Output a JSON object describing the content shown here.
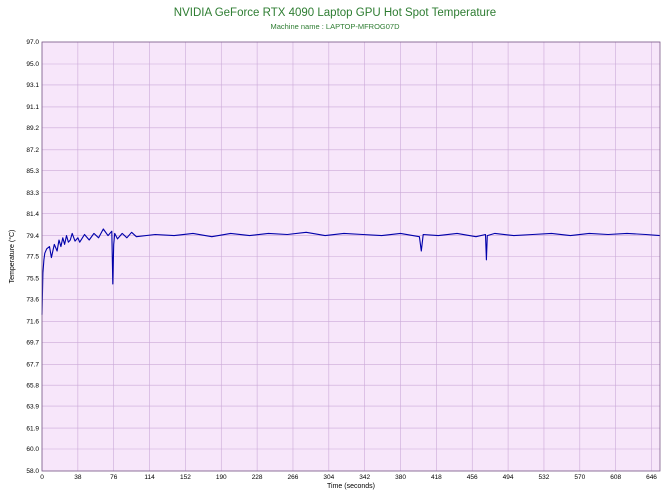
{
  "chart_data": {
    "type": "line",
    "title": "NVIDIA GeForce RTX 4090 Laptop GPU Hot Spot Temperature",
    "subtitle": "Machine name : LAPTOP-MFROG07D",
    "xlabel": "Time (seconds)",
    "ylabel": "Temperature (°C)",
    "xlim": [
      0,
      655
    ],
    "ylim": [
      58.0,
      97.0
    ],
    "x_ticks": [
      "0",
      "38",
      "76",
      "114",
      "152",
      "190",
      "228",
      "266",
      "304",
      "342",
      "380",
      "418",
      "456",
      "494",
      "532",
      "570",
      "608",
      "646"
    ],
    "y_ticks": [
      "97.0",
      "95.0",
      "93.1",
      "91.1",
      "89.2",
      "87.2",
      "85.3",
      "83.3",
      "81.4",
      "79.4",
      "77.5",
      "75.5",
      "73.6",
      "71.6",
      "69.7",
      "67.7",
      "65.8",
      "63.9",
      "61.9",
      "60.0",
      "58.0"
    ],
    "grid": true,
    "background_color": "#f7e6fa",
    "grid_color": "#cba9d8",
    "line_color": "#0000aa",
    "title_color": "#2e7d32",
    "series": [
      {
        "name": "",
        "x": [
          0,
          1,
          2,
          3,
          5,
          8,
          10,
          13,
          16,
          18,
          20,
          22,
          24,
          26,
          28,
          30,
          32,
          35,
          38,
          40,
          45,
          50,
          55,
          60,
          65,
          70,
          74,
          75,
          76,
          77,
          80,
          85,
          90,
          95,
          100,
          120,
          140,
          160,
          180,
          200,
          220,
          240,
          260,
          280,
          300,
          320,
          340,
          360,
          380,
          400,
          402,
          404,
          420,
          440,
          460,
          470,
          471,
          472,
          480,
          500,
          520,
          540,
          560,
          580,
          600,
          620,
          640,
          655
        ],
        "y": [
          72.2,
          76.0,
          77.2,
          77.8,
          78.2,
          78.4,
          77.4,
          78.6,
          78.0,
          79.0,
          78.4,
          79.2,
          78.6,
          79.4,
          78.8,
          79.0,
          79.6,
          78.9,
          79.2,
          78.8,
          79.5,
          79.0,
          79.6,
          79.2,
          80.0,
          79.4,
          79.8,
          75.0,
          78.6,
          79.6,
          79.1,
          79.6,
          79.2,
          79.7,
          79.3,
          79.5,
          79.4,
          79.6,
          79.3,
          79.6,
          79.4,
          79.6,
          79.5,
          79.7,
          79.4,
          79.6,
          79.5,
          79.4,
          79.6,
          79.3,
          78.0,
          79.5,
          79.4,
          79.6,
          79.3,
          79.5,
          77.2,
          79.4,
          79.6,
          79.4,
          79.5,
          79.6,
          79.4,
          79.6,
          79.5,
          79.6,
          79.5,
          79.4
        ]
      }
    ]
  }
}
